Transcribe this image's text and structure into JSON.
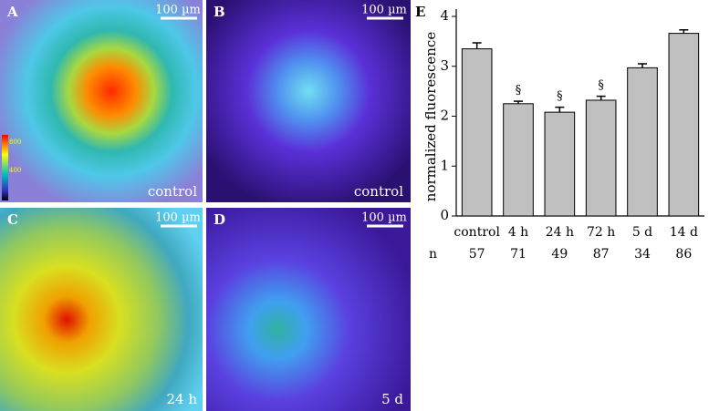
{
  "panels": [
    {
      "label": "A",
      "scale": "100 µm",
      "caption": "control",
      "colorbar": [
        "800",
        "400"
      ]
    },
    {
      "label": "B",
      "scale": "100 µm",
      "caption": "control"
    },
    {
      "label": "C",
      "scale": "100 µm",
      "caption": "24 h"
    },
    {
      "label": "D",
      "scale": "100 µm",
      "caption": "5 d"
    }
  ],
  "chart_data": {
    "type": "bar",
    "panel_label": "E",
    "ylabel": "normalized fluorescence",
    "categories": [
      "control",
      "4 h",
      "24 h",
      "72 h",
      "5 d",
      "14 d"
    ],
    "values": [
      3.35,
      2.25,
      2.08,
      2.32,
      2.97,
      3.66
    ],
    "errors": [
      0.12,
      0.05,
      0.1,
      0.08,
      0.08,
      0.07
    ],
    "markers": [
      null,
      "§",
      "§",
      "§",
      null,
      null
    ],
    "color": "#c0c0c0",
    "ylim": [
      0,
      4
    ],
    "yticks": [
      0,
      1,
      2,
      3,
      4
    ],
    "n": {
      "label": "n",
      "values": [
        57,
        71,
        49,
        87,
        34,
        86
      ]
    }
  }
}
